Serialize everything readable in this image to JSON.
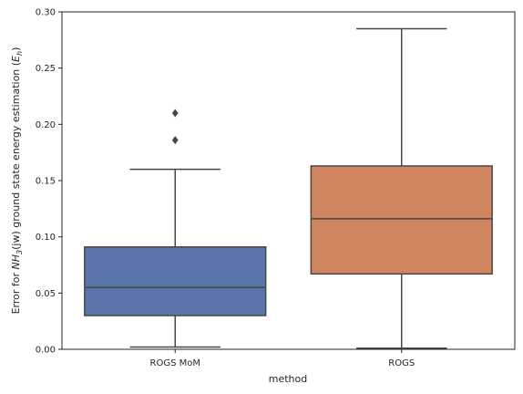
{
  "chart_data": {
    "type": "box",
    "categories": [
      "ROGS MoM",
      "ROGS"
    ],
    "xlabel": "method",
    "ylabel": "Error for NH₃(jw) ground state energy estimation (Eₕ)",
    "ylabel_parts": {
      "prefix": "Error for ",
      "molecule": "NH",
      "molecule_sub": "3",
      "middle": "(jw) ground state energy estimation (",
      "unit": "E",
      "unit_sub": "h",
      "suffix": ")"
    },
    "ylim": [
      0,
      0.3
    ],
    "yticks": [
      0.0,
      0.05,
      0.1,
      0.15,
      0.2,
      0.25,
      0.3
    ],
    "ytick_labels": [
      "0.00",
      "0.05",
      "0.10",
      "0.15",
      "0.20",
      "0.25",
      "0.30"
    ],
    "grid": false,
    "boxes": [
      {
        "category": "ROGS MoM",
        "whisker_low": 0.002,
        "q1": 0.03,
        "median": 0.055,
        "q3": 0.091,
        "whisker_high": 0.16,
        "outliers": [
          0.186,
          0.21
        ],
        "color": "#5874a8"
      },
      {
        "category": "ROGS",
        "whisker_low": 0.001,
        "q1": 0.067,
        "median": 0.116,
        "q3": 0.163,
        "whisker_high": 0.285,
        "outliers": [],
        "color": "#cf8660"
      }
    ]
  },
  "colors": {
    "line": "#474747",
    "axis": "#262626",
    "background": "#ffffff"
  }
}
